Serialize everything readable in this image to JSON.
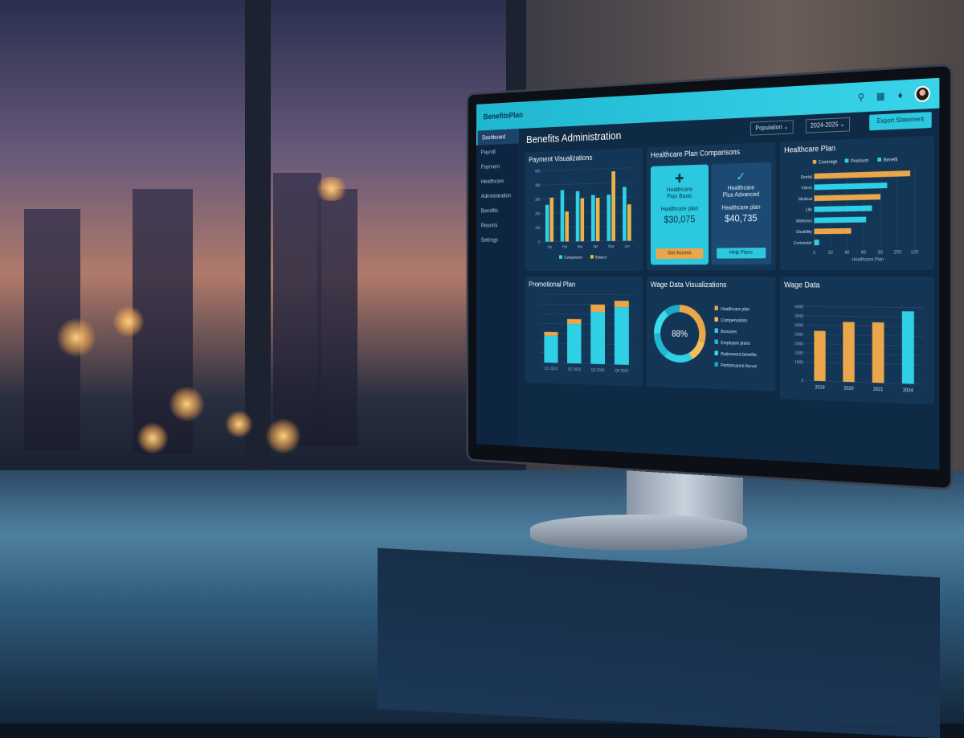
{
  "app": {
    "logo": "BenefitsPlan",
    "page_title": "Benefits Administration",
    "filters": [
      {
        "label": "Population"
      },
      {
        "label": "2024-2025"
      }
    ],
    "action_button": "Export Statement",
    "icons": [
      "search-icon",
      "grid-icon",
      "bell-icon",
      "avatar"
    ]
  },
  "sidebar": {
    "items": [
      {
        "label": "Dashboard",
        "active": true
      },
      {
        "label": "Payroll"
      },
      {
        "label": "Payment"
      },
      {
        "label": "Healthcare"
      },
      {
        "label": "Administration"
      },
      {
        "label": "Benefits"
      },
      {
        "label": "Reports"
      },
      {
        "label": "Settings"
      }
    ]
  },
  "healthcare_compare": {
    "title": "Healthcare Plan Comparisons",
    "cards": [
      {
        "name": "Healthcare",
        "sub": "Plan Basic",
        "price_label": "Healthcare plan",
        "price": "$30,075",
        "button": "Get Access",
        "icon": "plus-icon"
      },
      {
        "name": "Healthcare",
        "sub": "Plus Advanced",
        "price_label": "Healthcare plan",
        "price": "$40,735",
        "button": "Help Plans",
        "icon": "shield-check-icon"
      }
    ]
  },
  "colors": {
    "cyan": "#2fd0e6",
    "orange": "#e9a64a",
    "panel": "#143656",
    "topbar": "#2cc8e0"
  },
  "chart_data": [
    {
      "id": "payment",
      "type": "bar",
      "title": "Payment Visualizations",
      "categories": [
        "Jan",
        "Feb",
        "Mar",
        "Apr",
        "May",
        "Jun"
      ],
      "yticks": [
        0,
        100,
        200,
        300,
        400,
        500
      ],
      "ylim": [
        0,
        500
      ],
      "series": [
        {
          "name": "Comparisons",
          "color": "#2fd0e6",
          "values": [
            260,
            360,
            350,
            320,
            320,
            370
          ]
        },
        {
          "name": "Balance",
          "color": "#e9b44a",
          "values": [
            310,
            210,
            300,
            300,
            480,
            250
          ]
        }
      ],
      "legend": "bottom"
    },
    {
      "id": "healthcare_plan",
      "type": "bar",
      "orientation": "horizontal",
      "title": "Healthcare Plan",
      "categories": [
        "Dental",
        "Vision",
        "Medical",
        "Life",
        "Wellness",
        "Disability",
        "Commuter"
      ],
      "values": [
        115,
        88,
        80,
        70,
        63,
        45,
        6
      ],
      "colors": [
        "#e9a64a",
        "#2fd0e6",
        "#e9a64a",
        "#2fd0e6",
        "#2fd0e6",
        "#e9a64a",
        "#2fd0e6"
      ],
      "xticks": [
        0,
        20,
        40,
        60,
        80,
        100,
        120
      ],
      "xlim": [
        0,
        130
      ],
      "xlabel": "Healthcare Plan",
      "legend_entries": [
        {
          "name": "Coverage",
          "color": "#e9a64a"
        },
        {
          "name": "Premium",
          "color": "#2fd0e6"
        },
        {
          "name": "Benefit",
          "color": "#2fd0e6"
        }
      ],
      "legend": "top"
    },
    {
      "id": "promotional",
      "type": "bar",
      "stacked": true,
      "title": "Promotional Plan",
      "categories": [
        "Q1 2023",
        "Q2 2023",
        "Q3 2023",
        "Q4 2023"
      ],
      "ylim": [
        0,
        140
      ],
      "series": [
        {
          "color": "#2fd0e6",
          "values": [
            55,
            80,
            105,
            115
          ]
        },
        {
          "color": "#e9a64a",
          "values": [
            8,
            10,
            15,
            13
          ]
        }
      ]
    },
    {
      "id": "wage_viz",
      "type": "pie",
      "donut": true,
      "title": "Wage Data Visualizations",
      "center_label": "88%",
      "slices": [
        {
          "name": "Healthcare plan",
          "value": 30,
          "color": "#e9a64a"
        },
        {
          "name": "Compensation",
          "value": 12,
          "color": "#f0c060"
        },
        {
          "name": "Bonuses",
          "value": 18,
          "color": "#2fd0e6"
        },
        {
          "name": "Employee plans",
          "value": 15,
          "color": "#22b8d4"
        },
        {
          "name": "Retirement benefits",
          "value": 15,
          "color": "#38dcea"
        },
        {
          "name": "Performance bonus",
          "value": 10,
          "color": "#1aa8c8"
        }
      ]
    },
    {
      "id": "wage_data",
      "type": "bar",
      "title": "Wage Data",
      "categories": [
        "2019",
        "2020",
        "2021",
        "2024"
      ],
      "yticks": [
        0,
        1000,
        1500,
        2000,
        2500,
        3000,
        3500,
        4000
      ],
      "ylim": [
        0,
        4500
      ],
      "values": [
        2700,
        3200,
        3200,
        3800
      ],
      "colors": [
        "#e9a64a",
        "#e9a64a",
        "#e9a64a",
        "#2fd0e6"
      ]
    }
  ]
}
